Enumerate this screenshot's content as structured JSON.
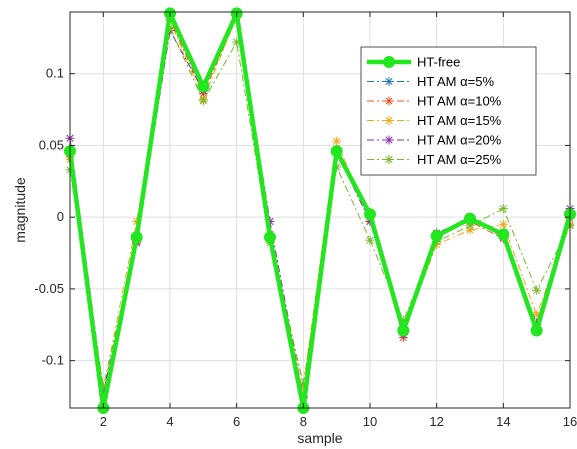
{
  "chart_data": {
    "type": "line",
    "xlabel": "sample",
    "ylabel": "magnitude",
    "xlim": [
      1,
      16
    ],
    "ylim": [
      -0.133,
      0.143
    ],
    "xticks": [
      2,
      4,
      6,
      8,
      10,
      12,
      14,
      16
    ],
    "yticks": [
      -0.1,
      -0.05,
      0,
      0.05,
      0.1
    ],
    "ytick_labels": [
      "-0.1",
      "-0.05",
      "0",
      "0.05",
      "0.1"
    ],
    "grid": true,
    "legend_position": "top-right",
    "x": [
      1,
      2,
      3,
      4,
      5,
      6,
      7,
      8,
      9,
      10,
      11,
      12,
      13,
      14,
      15,
      16
    ],
    "series": [
      {
        "name": "HT-free",
        "legend_prefix": "HT-free",
        "legend_alpha": "",
        "color": "#22e61e",
        "marker": "circle",
        "style": "solid",
        "values": [
          0.046,
          -0.133,
          -0.014,
          0.142,
          0.091,
          0.142,
          -0.014,
          -0.133,
          0.046,
          0.002,
          -0.079,
          -0.013,
          -0.001,
          -0.012,
          -0.079,
          0.002
        ]
      },
      {
        "name": "HT AM α=5%",
        "legend_prefix": "HT AM ",
        "legend_alpha": "α=5%",
        "color": "#1f77c4",
        "marker": "asterisk",
        "style": "dashdot",
        "values": [
          0.047,
          -0.131,
          -0.014,
          0.141,
          0.09,
          0.141,
          -0.013,
          -0.131,
          0.046,
          0.003,
          -0.078,
          -0.013,
          -0.001,
          -0.012,
          -0.078,
          0.003
        ]
      },
      {
        "name": "HT AM α=10%",
        "legend_prefix": "HT AM ",
        "legend_alpha": "α=10%",
        "color": "#e6541f",
        "marker": "asterisk",
        "style": "dashdot",
        "values": [
          0.042,
          -0.124,
          -0.017,
          0.138,
          0.086,
          0.139,
          -0.016,
          -0.125,
          0.047,
          0.0,
          -0.084,
          -0.012,
          -0.003,
          -0.015,
          -0.075,
          -0.001
        ]
      },
      {
        "name": "HT AM α=15%",
        "legend_prefix": "HT AM ",
        "legend_alpha": "α=15%",
        "color": "#f0a81b",
        "marker": "asterisk",
        "style": "dashdot",
        "values": [
          0.04,
          -0.12,
          -0.003,
          0.137,
          0.082,
          0.14,
          -0.012,
          -0.118,
          0.053,
          -0.002,
          -0.08,
          -0.019,
          -0.009,
          -0.005,
          -0.068,
          -0.005
        ]
      },
      {
        "name": "HT AM α=20%",
        "legend_prefix": "HT AM ",
        "legend_alpha": "α=20%",
        "color": "#8a2aa6",
        "marker": "asterisk",
        "style": "dashdot",
        "values": [
          0.055,
          -0.122,
          -0.018,
          0.13,
          0.088,
          0.143,
          -0.003,
          -0.126,
          0.045,
          -0.003,
          -0.082,
          -0.011,
          -0.001,
          -0.014,
          -0.074,
          0.006
        ]
      },
      {
        "name": "HT AM α=25%",
        "legend_prefix": "HT AM ",
        "legend_alpha": "α=25%",
        "color": "#78b72c",
        "marker": "asterisk",
        "style": "dashdot",
        "values": [
          0.033,
          -0.118,
          -0.016,
          0.132,
          0.081,
          0.122,
          -0.018,
          -0.116,
          0.035,
          -0.016,
          -0.072,
          -0.017,
          -0.006,
          0.006,
          -0.051,
          -0.006
        ]
      }
    ]
  }
}
